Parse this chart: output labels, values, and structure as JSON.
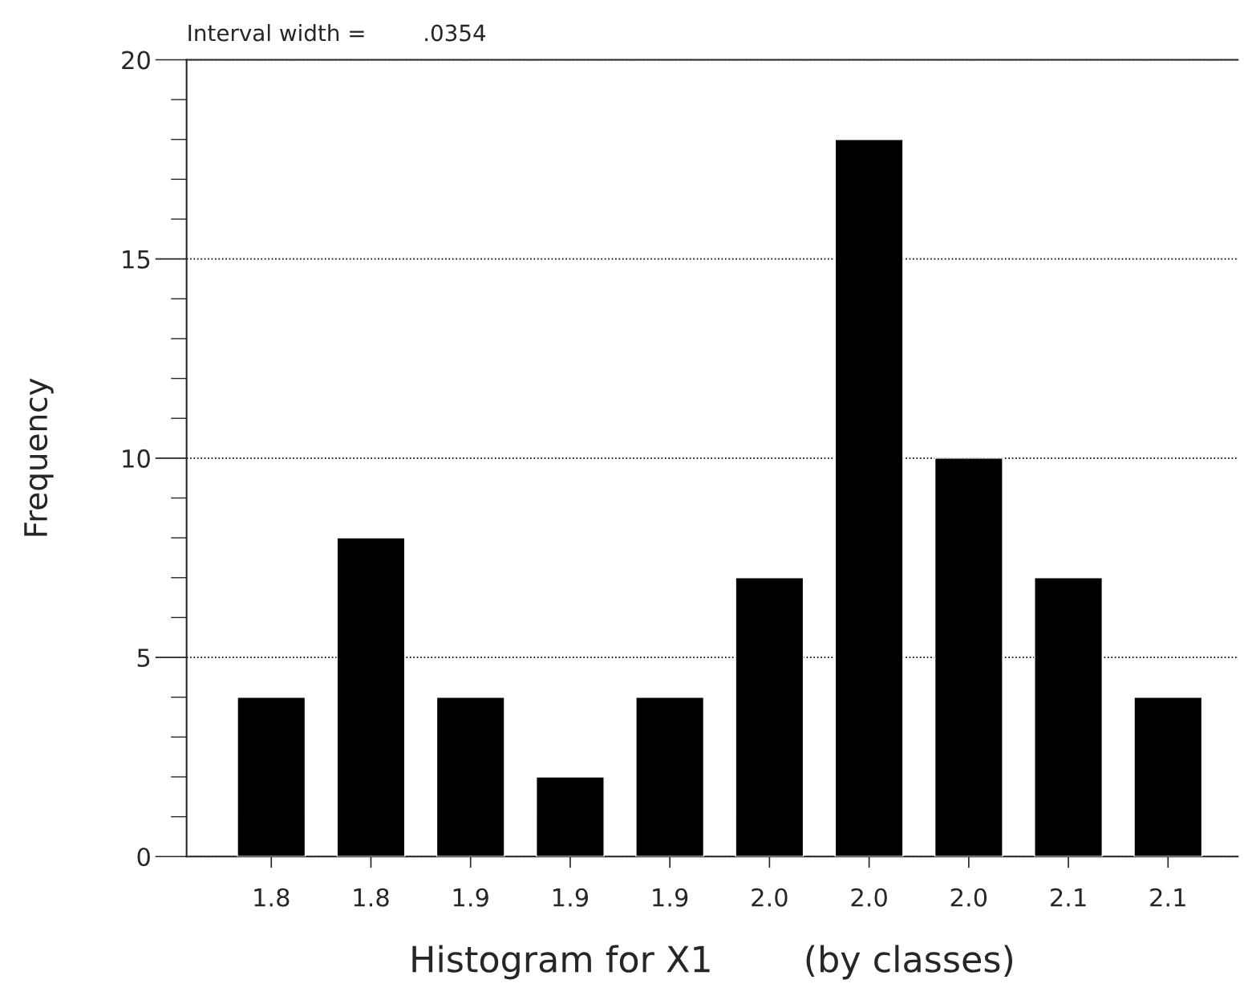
{
  "chart_data": {
    "type": "bar",
    "categories": [
      "1.8",
      "1.8",
      "1.9",
      "1.9",
      "1.9",
      "2.0",
      "2.0",
      "2.0",
      "2.1",
      "2.1"
    ],
    "values": [
      4,
      8,
      4,
      2,
      4,
      7,
      18,
      10,
      7,
      4
    ],
    "color": "#000000",
    "xlabel": "Histogram for X1        (by classes)",
    "ylabel": "Frequency",
    "annotations": [
      "Interval width =        .0354"
    ],
    "ylim": [
      0,
      20
    ],
    "yticks": [
      0,
      5,
      10,
      15,
      20
    ],
    "grid": "y"
  }
}
